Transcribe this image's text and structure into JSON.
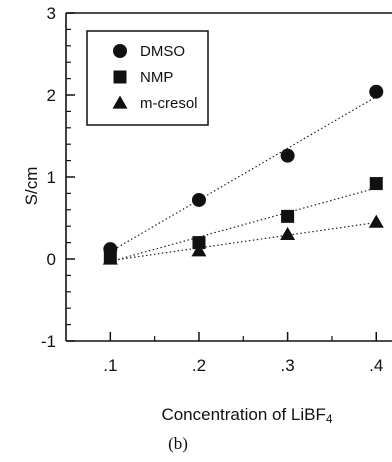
{
  "chart_data": {
    "type": "scatter",
    "title": "",
    "xlabel": "Concentration of LiBF",
    "xlabel_subscript": "4",
    "ylabel": "S/cm",
    "caption": "(b)",
    "x": [
      0.1,
      0.2,
      0.3,
      0.4
    ],
    "x_tick_labels": [
      ".1",
      ".2",
      ".3",
      ".4"
    ],
    "y_ticks": [
      -1,
      0,
      1,
      2,
      3
    ],
    "y_tick_labels": [
      "-1",
      "0",
      "1",
      "2",
      "3"
    ],
    "xlim": [
      0.05,
      0.42
    ],
    "ylim": [
      -1,
      3
    ],
    "grid": false,
    "legend_position": "top-left",
    "series": [
      {
        "name": "DMSO",
        "marker": "circle",
        "values": [
          0.12,
          0.72,
          1.26,
          2.04
        ]
      },
      {
        "name": "NMP",
        "marker": "square",
        "values": [
          0.03,
          0.2,
          0.52,
          0.92
        ]
      },
      {
        "name": "m-cresol",
        "marker": "triangle",
        "values": [
          0.0,
          0.1,
          0.3,
          0.45
        ]
      }
    ]
  }
}
